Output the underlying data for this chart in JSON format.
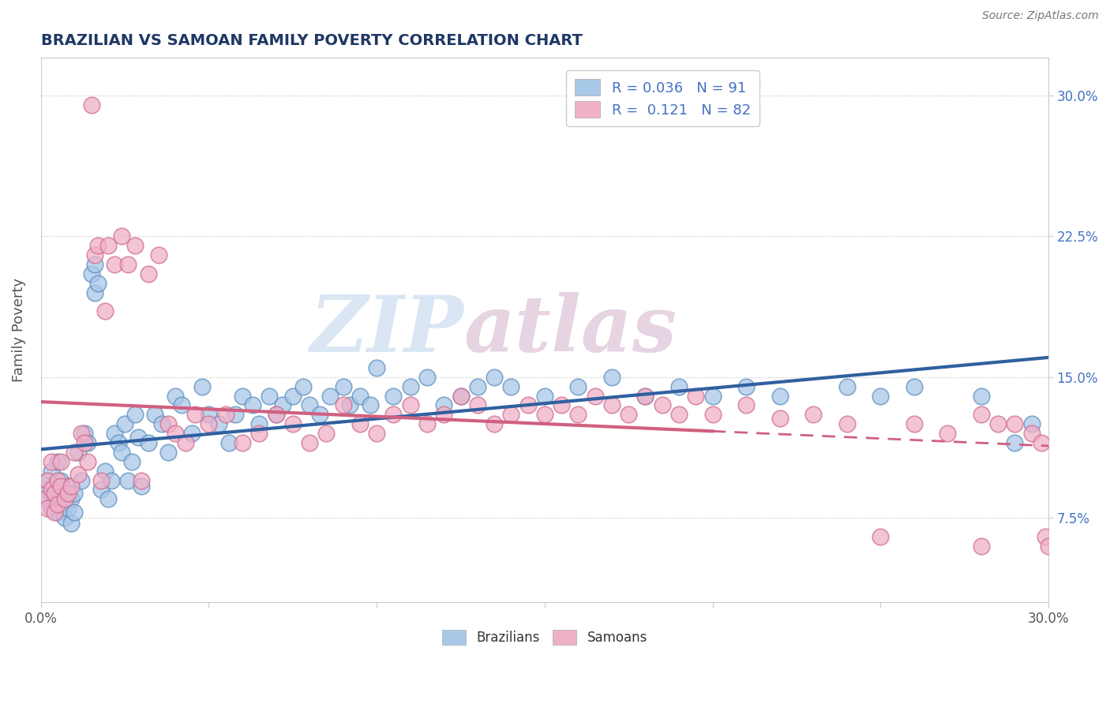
{
  "title": "BRAZILIAN VS SAMOAN FAMILY POVERTY CORRELATION CHART",
  "source": "Source: ZipAtlas.com",
  "ylabel": "Family Poverty",
  "xlim": [
    0.0,
    0.3
  ],
  "ylim": [
    0.03,
    0.32
  ],
  "xticks": [
    0.0,
    0.05,
    0.1,
    0.15,
    0.2,
    0.25,
    0.3
  ],
  "xtick_labels": [
    "0.0%",
    "",
    "",
    "",
    "",
    "",
    "30.0%"
  ],
  "yticks": [
    0.075,
    0.15,
    0.225,
    0.3
  ],
  "ytick_labels": [
    "7.5%",
    "15.0%",
    "22.5%",
    "30.0%"
  ],
  "color_blue": "#a8c8e8",
  "color_pink": "#f0b0c8",
  "color_blue_edge": "#6090c0",
  "color_pink_edge": "#d07090",
  "color_blue_line": "#3060a0",
  "color_pink_line": "#d06080",
  "watermark_zip": "ZIP",
  "watermark_atlas": "atlas",
  "legend_R_blue": "0.036",
  "legend_N_blue": "91",
  "legend_R_pink": "0.121",
  "legend_N_pink": "82",
  "legend_label_blue": "Brazilians",
  "legend_label_pink": "Samoans",
  "N_blue": 91,
  "N_pink": 82,
  "title_color": "#1f3864",
  "source_color": "#777777",
  "axis_label_color": "#555555",
  "tick_color_left": "#555555",
  "tick_color_right": "#4472c4",
  "legend_text_color": "#4472c4",
  "grid_color": "#cccccc",
  "background_color": "#ffffff",
  "blue_x": [
    0.001,
    0.002,
    0.002,
    0.003,
    0.003,
    0.004,
    0.004,
    0.005,
    0.005,
    0.005,
    0.006,
    0.006,
    0.007,
    0.007,
    0.008,
    0.008,
    0.009,
    0.009,
    0.01,
    0.01,
    0.011,
    0.012,
    0.013,
    0.014,
    0.015,
    0.016,
    0.016,
    0.017,
    0.018,
    0.019,
    0.02,
    0.021,
    0.022,
    0.023,
    0.024,
    0.025,
    0.026,
    0.027,
    0.028,
    0.029,
    0.03,
    0.032,
    0.034,
    0.036,
    0.038,
    0.04,
    0.042,
    0.045,
    0.048,
    0.05,
    0.053,
    0.056,
    0.058,
    0.06,
    0.063,
    0.065,
    0.068,
    0.07,
    0.072,
    0.075,
    0.078,
    0.08,
    0.083,
    0.086,
    0.09,
    0.092,
    0.095,
    0.098,
    0.1,
    0.105,
    0.11,
    0.115,
    0.12,
    0.125,
    0.13,
    0.135,
    0.14,
    0.15,
    0.16,
    0.17,
    0.18,
    0.19,
    0.2,
    0.21,
    0.22,
    0.24,
    0.25,
    0.26,
    0.28,
    0.29,
    0.295
  ],
  "blue_y": [
    0.09,
    0.085,
    0.095,
    0.08,
    0.1,
    0.085,
    0.092,
    0.088,
    0.078,
    0.105,
    0.082,
    0.095,
    0.088,
    0.075,
    0.092,
    0.08,
    0.085,
    0.072,
    0.088,
    0.078,
    0.11,
    0.095,
    0.12,
    0.115,
    0.205,
    0.195,
    0.21,
    0.2,
    0.09,
    0.1,
    0.085,
    0.095,
    0.12,
    0.115,
    0.11,
    0.125,
    0.095,
    0.105,
    0.13,
    0.118,
    0.092,
    0.115,
    0.13,
    0.125,
    0.11,
    0.14,
    0.135,
    0.12,
    0.145,
    0.13,
    0.125,
    0.115,
    0.13,
    0.14,
    0.135,
    0.125,
    0.14,
    0.13,
    0.135,
    0.14,
    0.145,
    0.135,
    0.13,
    0.14,
    0.145,
    0.135,
    0.14,
    0.135,
    0.155,
    0.14,
    0.145,
    0.15,
    0.135,
    0.14,
    0.145,
    0.15,
    0.145,
    0.14,
    0.145,
    0.15,
    0.14,
    0.145,
    0.14,
    0.145,
    0.14,
    0.145,
    0.14,
    0.145,
    0.14,
    0.115,
    0.125
  ],
  "pink_x": [
    0.001,
    0.002,
    0.002,
    0.003,
    0.003,
    0.004,
    0.004,
    0.005,
    0.005,
    0.006,
    0.006,
    0.007,
    0.008,
    0.009,
    0.01,
    0.011,
    0.012,
    0.013,
    0.014,
    0.015,
    0.016,
    0.017,
    0.018,
    0.019,
    0.02,
    0.022,
    0.024,
    0.026,
    0.028,
    0.03,
    0.032,
    0.035,
    0.038,
    0.04,
    0.043,
    0.046,
    0.05,
    0.055,
    0.06,
    0.065,
    0.07,
    0.075,
    0.08,
    0.085,
    0.09,
    0.095,
    0.1,
    0.105,
    0.11,
    0.115,
    0.12,
    0.125,
    0.13,
    0.135,
    0.14,
    0.145,
    0.15,
    0.155,
    0.16,
    0.165,
    0.17,
    0.175,
    0.18,
    0.185,
    0.19,
    0.195,
    0.2,
    0.21,
    0.22,
    0.23,
    0.24,
    0.25,
    0.26,
    0.27,
    0.28,
    0.29,
    0.295,
    0.298,
    0.299,
    0.3,
    0.28,
    0.285
  ],
  "pink_y": [
    0.085,
    0.095,
    0.08,
    0.105,
    0.09,
    0.088,
    0.078,
    0.095,
    0.082,
    0.092,
    0.105,
    0.085,
    0.088,
    0.092,
    0.11,
    0.098,
    0.12,
    0.115,
    0.105,
    0.295,
    0.215,
    0.22,
    0.095,
    0.185,
    0.22,
    0.21,
    0.225,
    0.21,
    0.22,
    0.095,
    0.205,
    0.215,
    0.125,
    0.12,
    0.115,
    0.13,
    0.125,
    0.13,
    0.115,
    0.12,
    0.13,
    0.125,
    0.115,
    0.12,
    0.135,
    0.125,
    0.12,
    0.13,
    0.135,
    0.125,
    0.13,
    0.14,
    0.135,
    0.125,
    0.13,
    0.135,
    0.13,
    0.135,
    0.13,
    0.14,
    0.135,
    0.13,
    0.14,
    0.135,
    0.13,
    0.14,
    0.13,
    0.135,
    0.128,
    0.13,
    0.125,
    0.065,
    0.125,
    0.12,
    0.06,
    0.125,
    0.12,
    0.115,
    0.065,
    0.06,
    0.13,
    0.125
  ]
}
